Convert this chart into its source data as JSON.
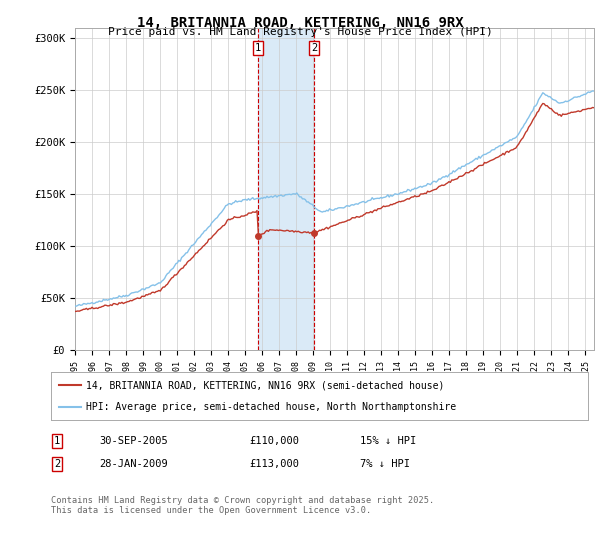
{
  "title": "14, BRITANNIA ROAD, KETTERING, NN16 9RX",
  "subtitle": "Price paid vs. HM Land Registry's House Price Index (HPI)",
  "hpi_color": "#85c1e9",
  "price_color": "#c0392b",
  "annotation_bg": "#daeaf7",
  "annotation_border": "#cc0000",
  "ylim": [
    0,
    310000
  ],
  "yticks": [
    0,
    50000,
    100000,
    150000,
    200000,
    250000,
    300000
  ],
  "ytick_labels": [
    "£0",
    "£50K",
    "£100K",
    "£150K",
    "£200K",
    "£250K",
    "£300K"
  ],
  "legend_label_red": "14, BRITANNIA ROAD, KETTERING, NN16 9RX (semi-detached house)",
  "legend_label_blue": "HPI: Average price, semi-detached house, North Northamptonshire",
  "transaction1_date": "30-SEP-2005",
  "transaction1_price": "£110,000",
  "transaction1_hpi": "15% ↓ HPI",
  "transaction1_x": 2005.75,
  "transaction1_y": 110000,
  "transaction2_date": "28-JAN-2009",
  "transaction2_price": "£113,000",
  "transaction2_hpi": "7% ↓ HPI",
  "transaction2_x": 2009.07,
  "transaction2_y": 113000,
  "shade_x1": 2005.75,
  "shade_x2": 2009.07,
  "footer": "Contains HM Land Registry data © Crown copyright and database right 2025.\nThis data is licensed under the Open Government Licence v3.0.",
  "background_color": "#ffffff",
  "grid_color": "#cccccc",
  "xmin": 1995.0,
  "xmax": 2025.5
}
